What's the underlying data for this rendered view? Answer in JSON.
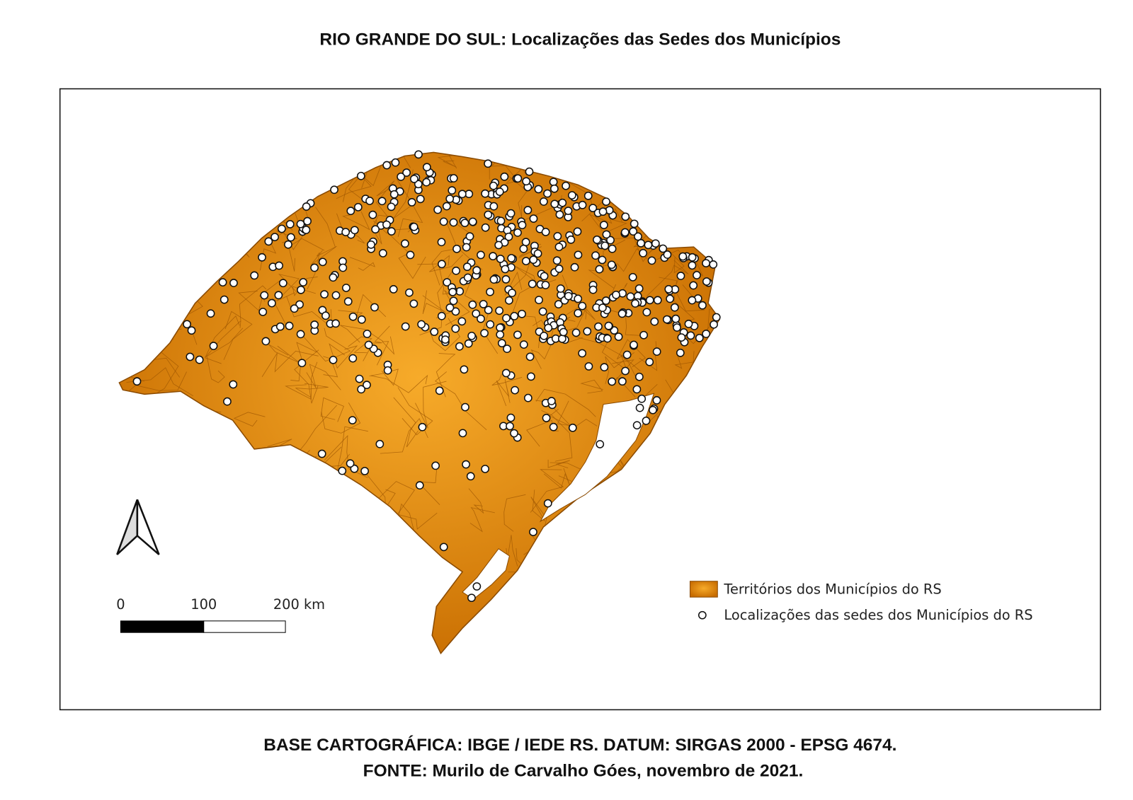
{
  "title": "RIO GRANDE DO SUL: Localizações das Sedes dos Municípios",
  "legend": {
    "items": [
      "Territórios dos Municípios do RS",
      "Localizações das sedes dos Municípios do RS"
    ]
  },
  "scale_bar": {
    "labels": [
      "0",
      "100",
      "200 km"
    ]
  },
  "footer": {
    "lines": [
      "BASE CARTOGRÁFICA: IBGE / IEDE RS. DATUM: SIRGAS 2000 - EPSG 4674.",
      "FONTE: Murilo de Carvalho Góes, novembro de 2021."
    ]
  }
}
